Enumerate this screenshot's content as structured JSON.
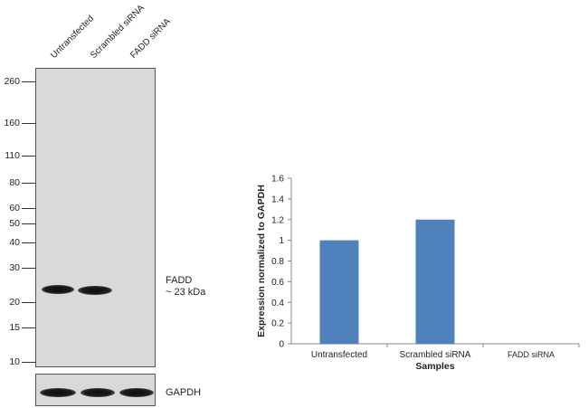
{
  "blot": {
    "lanes": [
      "Untransfected",
      "Scrambled siRNA",
      "FADD siRNA"
    ],
    "mw_markers": [
      {
        "label": "260",
        "kda": 260
      },
      {
        "label": "160",
        "kda": 160
      },
      {
        "label": "110",
        "kda": 110
      },
      {
        "label": "80",
        "kda": 80
      },
      {
        "label": "60",
        "kda": 60
      },
      {
        "label": "50",
        "kda": 50
      },
      {
        "label": "40",
        "kda": 40
      },
      {
        "label": "30",
        "kda": 30
      },
      {
        "label": "20",
        "kda": 20
      },
      {
        "label": "15",
        "kda": 15
      },
      {
        "label": "10",
        "kda": 10
      }
    ],
    "target_label_line1": "FADD",
    "target_label_line2": "~ 23 kDa",
    "loading_control_label": "GAPDH",
    "target_band_intensity": [
      1,
      1,
      0
    ],
    "control_band_intensity": [
      1,
      1,
      1
    ]
  },
  "chart_data": {
    "type": "bar",
    "categories": [
      "Untransfected",
      "Scrambled siRNA",
      "FADD siRNA"
    ],
    "values": [
      1.0,
      1.2,
      0.0
    ],
    "title": "",
    "xlabel": "Samples",
    "ylabel": "Expression normalized to GAPDH",
    "ylim": [
      0,
      1.6
    ],
    "yticks": [
      0,
      0.2,
      0.4,
      0.6,
      0.8,
      1,
      1.2,
      1.4,
      1.6
    ],
    "ytick_labels": [
      "0",
      "0.2",
      "0.4",
      "0.6",
      "0.8",
      "1",
      "1.2",
      "1.4",
      "1.6"
    ],
    "grid": false,
    "bar_color": "#4f81bd"
  }
}
